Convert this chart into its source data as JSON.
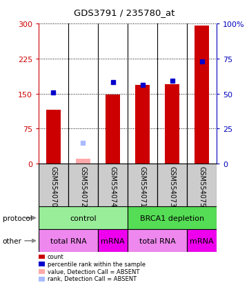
{
  "title": "GDS3791 / 235780_at",
  "samples": [
    "GSM554070",
    "GSM554072",
    "GSM554074",
    "GSM554071",
    "GSM554073",
    "GSM554075"
  ],
  "red_bars": [
    115,
    null,
    148,
    168,
    170,
    296
  ],
  "blue_dots_pct": [
    51,
    null,
    58,
    56,
    59,
    73
  ],
  "pink_bars": [
    null,
    10,
    null,
    null,
    null,
    null
  ],
  "light_blue_dots_pct": [
    null,
    15,
    null,
    null,
    null,
    null
  ],
  "ylim_left": [
    0,
    300
  ],
  "ylim_right": [
    0,
    100
  ],
  "yticks_left": [
    0,
    75,
    150,
    225,
    300
  ],
  "yticks_right": [
    0,
    25,
    50,
    75,
    100
  ],
  "protocol_groups": [
    {
      "label": "control",
      "start": 0,
      "end": 3,
      "color": "#99EE99"
    },
    {
      "label": "BRCA1 depletion",
      "start": 3,
      "end": 6,
      "color": "#55DD55"
    }
  ],
  "other_groups": [
    {
      "label": "total RNA",
      "start": 0,
      "end": 2,
      "color": "#EE88EE"
    },
    {
      "label": "mRNA",
      "start": 2,
      "end": 3,
      "color": "#EE00EE"
    },
    {
      "label": "total RNA",
      "start": 3,
      "end": 5,
      "color": "#EE88EE"
    },
    {
      "label": "mRNA",
      "start": 5,
      "end": 6,
      "color": "#EE00EE"
    }
  ],
  "legend_items": [
    {
      "label": "count",
      "color": "#CC0000"
    },
    {
      "label": "percentile rank within the sample",
      "color": "#0000CC"
    },
    {
      "label": "value, Detection Call = ABSENT",
      "color": "#FFAAAA"
    },
    {
      "label": "rank, Detection Call = ABSENT",
      "color": "#AABBFF"
    }
  ],
  "bar_color": "#CC0000",
  "blue_dot_color": "#0000CC",
  "pink_bar_color": "#FFAAAA",
  "light_blue_dot_color": "#AABBFF",
  "left_axis_color": "#CC0000",
  "right_axis_color": "#0000BB",
  "bg_color": "#FFFFFF",
  "bar_width": 0.5,
  "sample_bg": "#CCCCCC"
}
